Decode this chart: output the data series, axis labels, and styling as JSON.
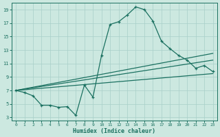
{
  "xlabel": "Humidex (Indice chaleur)",
  "xlim": [
    -0.5,
    23.5
  ],
  "ylim": [
    2.5,
    20.0
  ],
  "yticks": [
    3,
    5,
    7,
    9,
    11,
    13,
    15,
    17,
    19
  ],
  "xticks": [
    0,
    1,
    2,
    3,
    4,
    5,
    6,
    7,
    8,
    9,
    10,
    11,
    12,
    13,
    14,
    15,
    16,
    17,
    18,
    19,
    20,
    21,
    22,
    23
  ],
  "bg_color": "#cce8e0",
  "grid_color": "#a8cfc8",
  "line_color": "#1a7060",
  "line1_x": [
    0,
    1,
    2,
    3,
    4,
    5,
    6,
    7,
    8,
    9,
    10,
    11,
    12,
    13,
    14,
    15,
    16,
    17,
    18,
    19,
    20,
    21,
    22,
    23
  ],
  "line1_y": [
    7.0,
    6.7,
    6.2,
    4.8,
    4.8,
    4.5,
    4.6,
    3.3,
    7.8,
    6.0,
    12.2,
    16.8,
    17.2,
    18.2,
    19.4,
    19.0,
    17.3,
    14.3,
    13.2,
    12.2,
    11.5,
    10.3,
    10.7,
    9.8
  ],
  "line2_x": [
    0,
    23
  ],
  "line2_y": [
    7.0,
    9.5
  ],
  "line3_x": [
    0,
    23
  ],
  "line3_y": [
    7.0,
    11.5
  ],
  "line4_x": [
    0,
    23
  ],
  "line4_y": [
    7.0,
    12.5
  ]
}
